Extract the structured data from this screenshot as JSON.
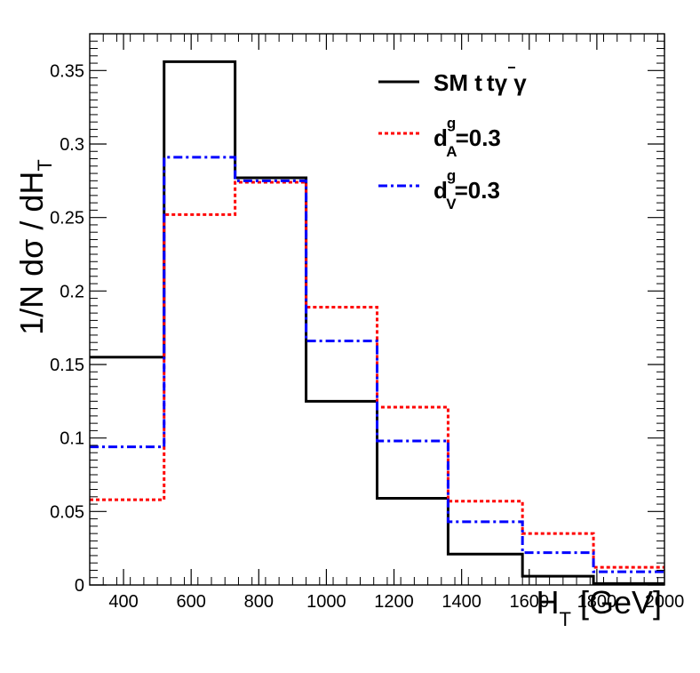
{
  "chart_data": {
    "type": "line",
    "style": "step-histogram",
    "title": "",
    "xlabel": {
      "main": "H",
      "sub": "T",
      "unit": "[GeV]"
    },
    "ylabel": {
      "main": "1/N d",
      "sigma": "σ",
      "mid": " / dH",
      "sub": "T"
    },
    "xlim": [
      300,
      2000
    ],
    "ylim": [
      0,
      0.375
    ],
    "xticks": [
      400,
      600,
      800,
      1000,
      1200,
      1400,
      1600,
      1800,
      2000
    ],
    "yticks": [
      0,
      0.05,
      0.1,
      0.15,
      0.2,
      0.25,
      0.3,
      0.35
    ],
    "ytick_labels": [
      "0",
      "0.05",
      "0.1",
      "0.15",
      "0.2",
      "0.25",
      "0.3",
      "0.35"
    ],
    "bin_edges": [
      300,
      520,
      730,
      940,
      1150,
      1360,
      1580,
      1790,
      2000
    ],
    "grid": false,
    "legend_position": "top-right",
    "series": [
      {
        "name": "SM t t̄ γ γ",
        "label_main": "SM t",
        "label_tbar": "t",
        "label_gammas": "γ γ",
        "color": "#000000",
        "dash": "solid",
        "values": [
          0.155,
          0.356,
          0.277,
          0.125,
          0.059,
          0.021,
          0.006,
          0.001
        ]
      },
      {
        "name": "d_A^g=0.3",
        "label_main": "d",
        "label_sup": "g",
        "label_sub": "A",
        "label_value": "=0.3",
        "color": "#ff0000",
        "dash": "dotted",
        "values": [
          0.058,
          0.252,
          0.274,
          0.189,
          0.121,
          0.057,
          0.035,
          0.012
        ]
      },
      {
        "name": "d_V^g=0.3",
        "label_main": "d",
        "label_sup": "g",
        "label_sub": "V",
        "label_value": "=0.3",
        "color": "#0000ff",
        "dash": "dashdot",
        "values": [
          0.094,
          0.291,
          0.275,
          0.166,
          0.098,
          0.043,
          0.022,
          0.009
        ]
      }
    ]
  }
}
